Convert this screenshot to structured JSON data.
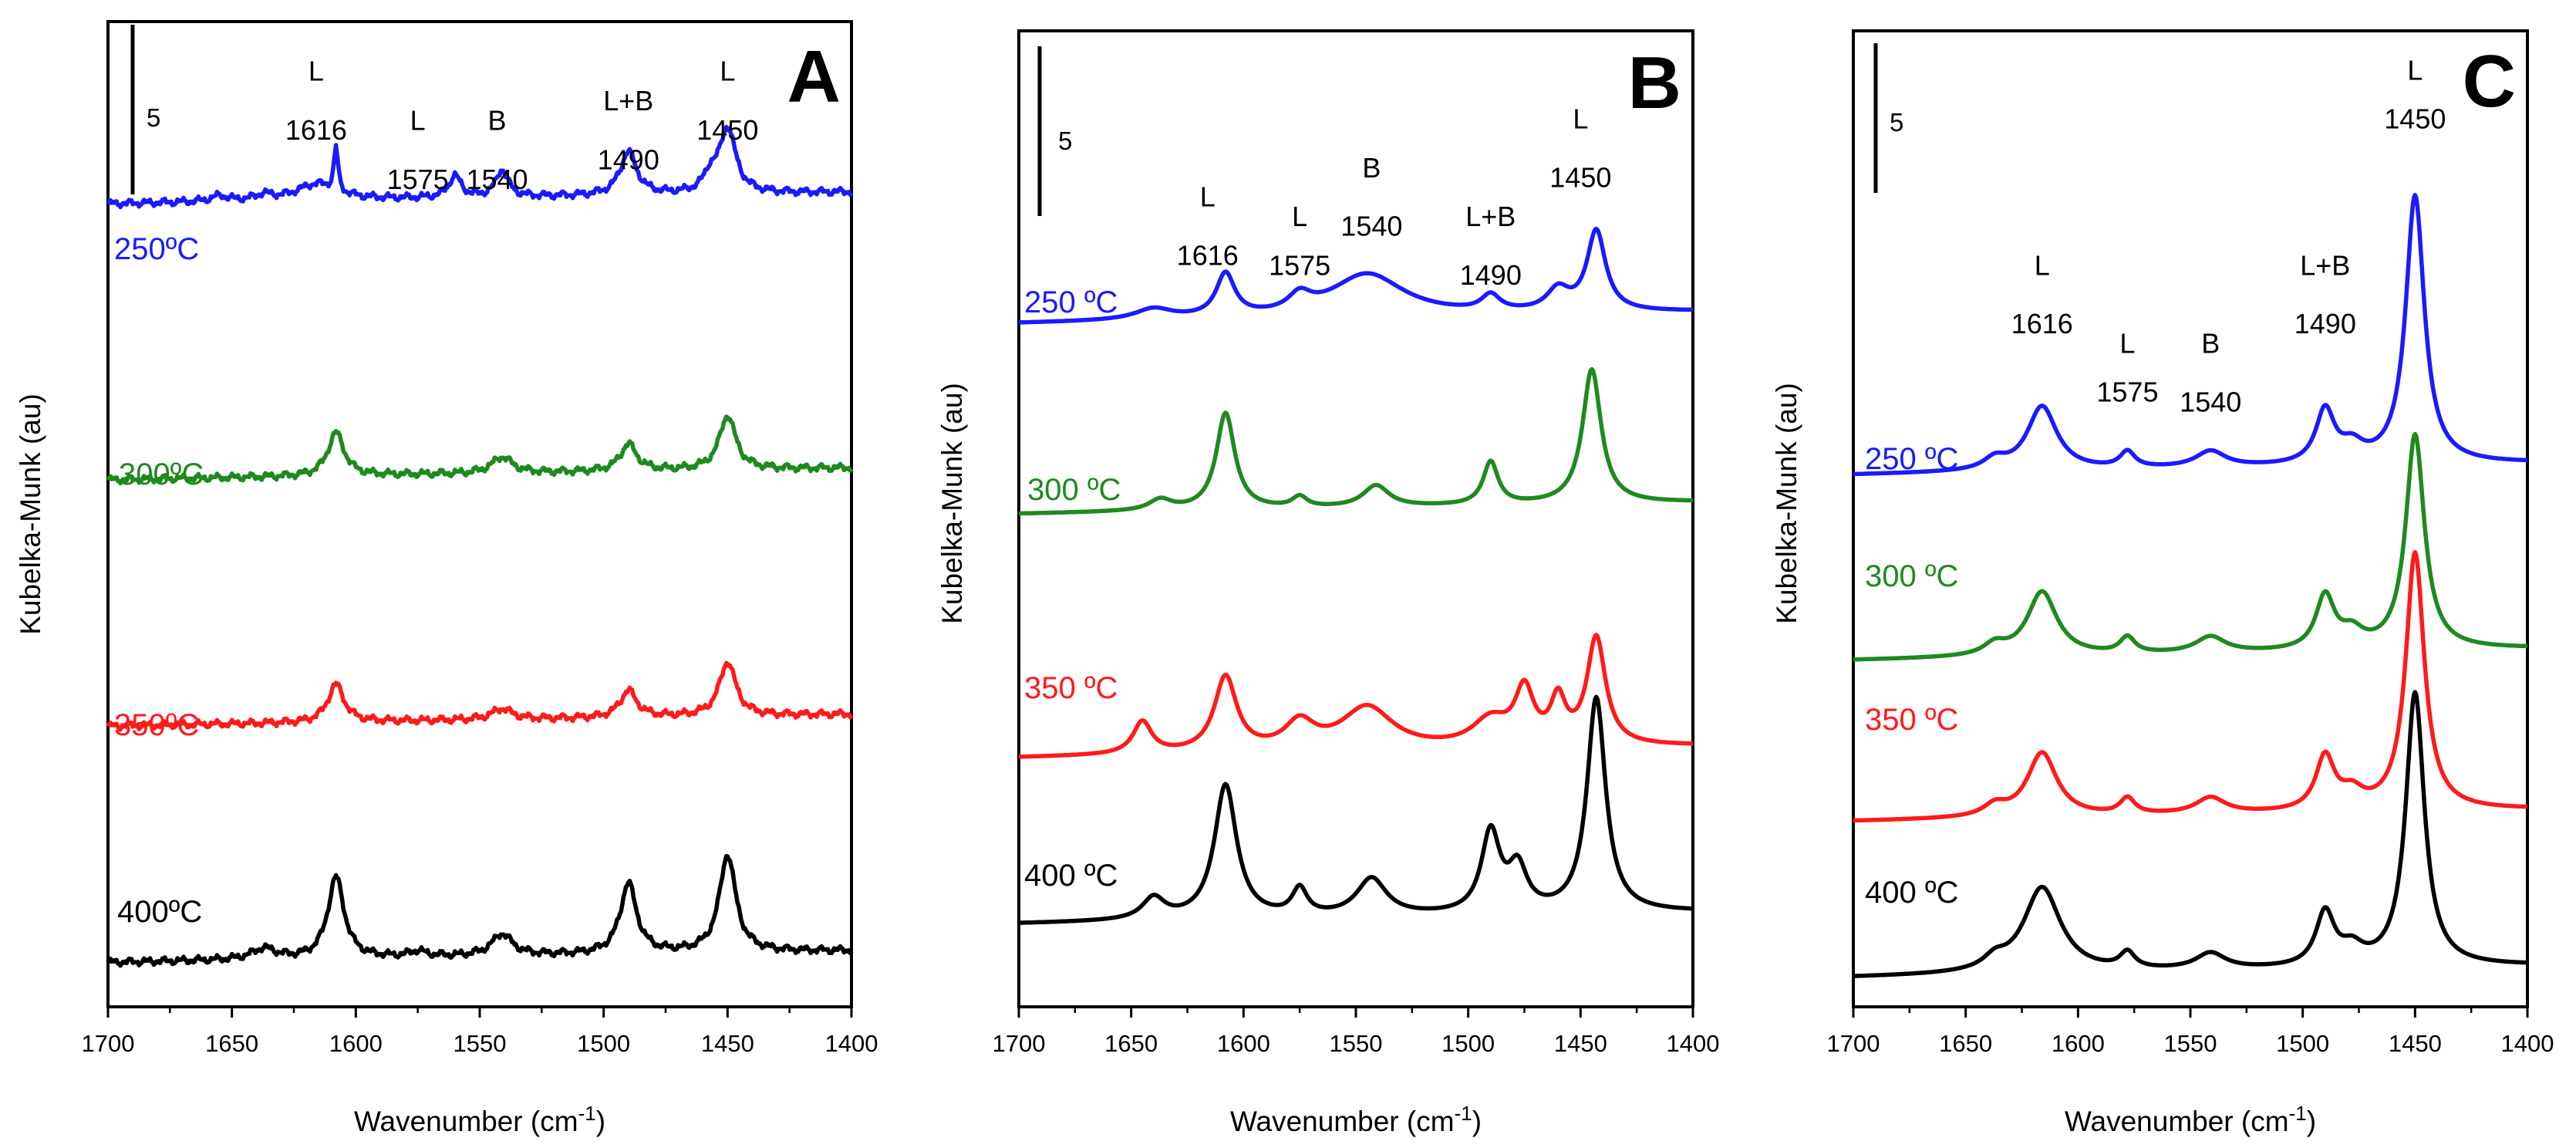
{
  "figure": {
    "ylabel": "Kubelka-Munk (au)",
    "xlabel": "Wavenumber (cm",
    "xlabel_sup": "-1",
    "xlabel_end": ")"
  },
  "colors": {
    "250": "#1a1aff",
    "300": "#1e8a1e",
    "350": "#ff1a1a",
    "400": "#000000",
    "frame": "#000000"
  },
  "chart_data": [
    {
      "type": "line",
      "panel": "A",
      "title": "A",
      "xlabel": "Wavenumber (cm-1)",
      "ylabel": "Kubelka-Munk (au)",
      "xlim": [
        1700,
        1400
      ],
      "ylim": [
        0,
        100
      ],
      "x_ticks": [
        "1700",
        "1650",
        "1600",
        "1550",
        "1500",
        "1450",
        "1400"
      ],
      "scale_bar": "5",
      "series": [
        {
          "name": "250ºC",
          "color_key": "250",
          "baseline": 81.5,
          "amp": 0.55,
          "noise": true,
          "peaks": [
            [
              1616,
              3,
              10
            ],
            [
              1608,
              8,
              1
            ],
            [
              1560,
              4,
              3
            ],
            [
              1541,
              5,
              3
            ],
            [
              1490,
              8,
              4
            ],
            [
              1457,
              3,
              3
            ],
            [
              1450,
              12,
              4
            ],
            [
              1655,
              1,
              4
            ],
            [
              1637,
              1,
              4
            ]
          ]
        },
        {
          "name": "300ºC",
          "color_key": "300",
          "baseline": 53.5,
          "amp": 0.55,
          "noise": true,
          "peaks": [
            [
              1608,
              8,
              4
            ],
            [
              1541,
              3,
              5
            ],
            [
              1490,
              5,
              4
            ],
            [
              1450,
              10,
              4
            ]
          ]
        },
        {
          "name": "350ºC",
          "color_key": "350",
          "baseline": 28.5,
          "amp": 0.55,
          "noise": true,
          "peaks": [
            [
              1608,
              7,
              4
            ],
            [
              1541,
              2,
              5
            ],
            [
              1490,
              5,
              4
            ],
            [
              1450,
              10,
              4
            ]
          ]
        },
        {
          "name": "400ºC",
          "color_key": "400",
          "baseline": 4.5,
          "amp": 0.55,
          "noise": true,
          "peaks": [
            [
              1608,
              15,
              4
            ],
            [
              1575,
              1,
              4
            ],
            [
              1541,
              4,
              5
            ],
            [
              1637,
              2,
              6
            ],
            [
              1490,
              13,
              4
            ],
            [
              1450,
              18,
              4
            ]
          ]
        }
      ],
      "annotations": [
        {
          "text": "L",
          "x": 1616,
          "y": 94
        },
        {
          "text": "1616",
          "x": 1616,
          "y": 88
        },
        {
          "text": "L",
          "x": 1575,
          "y": 89
        },
        {
          "text": "1575",
          "x": 1575,
          "y": 83
        },
        {
          "text": "B",
          "x": 1543,
          "y": 89
        },
        {
          "text": "1540",
          "x": 1543,
          "y": 83
        },
        {
          "text": "L+B",
          "x": 1490,
          "y": 91
        },
        {
          "text": "1490",
          "x": 1490,
          "y": 85
        },
        {
          "text": "L",
          "x": 1450,
          "y": 94
        },
        {
          "text": "1450",
          "x": 1450,
          "y": 88
        }
      ]
    },
    {
      "type": "line",
      "panel": "B",
      "title": "B",
      "xlabel": "Wavenumber (cm-1)",
      "ylabel": "Kubelka-Munk (au)",
      "xlim": [
        1700,
        1400
      ],
      "ylim": [
        0,
        100
      ],
      "x_ticks": [
        "1700",
        "1650",
        "1600",
        "1550",
        "1500",
        "1450",
        "1400"
      ],
      "scale_bar": "5",
      "series": [
        {
          "name": "250 ºC",
          "color_key": "250",
          "baseline": 70,
          "amp": 0.55,
          "noise": false,
          "peaks": [
            [
              1640,
              2,
              10
            ],
            [
              1608,
              8,
              5
            ],
            [
              1575,
              3,
              6
            ],
            [
              1545,
              8,
              20
            ],
            [
              1490,
              3,
              5
            ],
            [
              1460,
              4,
              6
            ],
            [
              1443,
              15,
              5
            ]
          ]
        },
        {
          "name": "300 ºC",
          "color_key": "300",
          "baseline": 50.5,
          "amp": 0.55,
          "noise": false,
          "peaks": [
            [
              1637,
              2,
              6
            ],
            [
              1608,
              18,
              5
            ],
            [
              1575,
              2,
              4
            ],
            [
              1541,
              4,
              7
            ],
            [
              1490,
              8,
              4
            ],
            [
              1445,
              25,
              5
            ]
          ]
        },
        {
          "name": "350 ºC",
          "color_key": "350",
          "baseline": 25.5,
          "amp": 0.55,
          "noise": false,
          "peaks": [
            [
              1645,
              6,
              5
            ],
            [
              1608,
              14,
              6
            ],
            [
              1575,
              5,
              8
            ],
            [
              1545,
              8,
              14
            ],
            [
              1490,
              5,
              10
            ],
            [
              1475,
              10,
              5
            ],
            [
              1460,
              8,
              4
            ],
            [
              1443,
              20,
              5
            ]
          ]
        },
        {
          "name": "400 ºC",
          "color_key": "400",
          "baseline": 8.5,
          "amp": 0.55,
          "noise": false,
          "peaks": [
            [
              1640,
              4,
              6
            ],
            [
              1608,
              25,
              6
            ],
            [
              1575,
              5,
              4
            ],
            [
              1543,
              7,
              8
            ],
            [
              1490,
              15,
              5
            ],
            [
              1478,
              8,
              5
            ],
            [
              1443,
              40,
              5
            ]
          ]
        }
      ],
      "annotations": [
        {
          "text": "L",
          "x": 1616,
          "y": 82
        },
        {
          "text": "1616",
          "x": 1616,
          "y": 76
        },
        {
          "text": "L",
          "x": 1575,
          "y": 80
        },
        {
          "text": "1575",
          "x": 1575,
          "y": 75
        },
        {
          "text": "B",
          "x": 1543,
          "y": 85
        },
        {
          "text": "1540",
          "x": 1543,
          "y": 79
        },
        {
          "text": "L+B",
          "x": 1490,
          "y": 80
        },
        {
          "text": "1490",
          "x": 1490,
          "y": 74
        },
        {
          "text": "L",
          "x": 1450,
          "y": 90
        },
        {
          "text": "1450",
          "x": 1450,
          "y": 84
        }
      ]
    },
    {
      "type": "line",
      "panel": "C",
      "title": "C",
      "xlabel": "Wavenumber (cm-1)",
      "ylabel": "Kubelka-Munk (au)",
      "xlim": [
        1700,
        1400
      ],
      "ylim": [
        0,
        100
      ],
      "x_ticks": [
        "1700",
        "1650",
        "1600",
        "1550",
        "1500",
        "1450",
        "1400"
      ],
      "scale_bar": "5",
      "series": [
        {
          "name": "250 ºC",
          "color_key": "250",
          "baseline": 54.5,
          "amp": 0.55,
          "noise": false,
          "peaks": [
            [
              1637,
              2,
              6
            ],
            [
              1616,
              12,
              8
            ],
            [
              1578,
              3,
              4
            ],
            [
              1541,
              3,
              8
            ],
            [
              1490,
              10,
              5
            ],
            [
              1478,
              3,
              6
            ],
            [
              1450,
              50,
              5
            ]
          ]
        },
        {
          "name": "300 ºC",
          "color_key": "300",
          "baseline": 35.5,
          "amp": 0.55,
          "noise": false,
          "peaks": [
            [
              1637,
              2,
              6
            ],
            [
              1616,
              12,
              8
            ],
            [
              1578,
              3,
              4
            ],
            [
              1541,
              3,
              8
            ],
            [
              1490,
              10,
              5
            ],
            [
              1478,
              3,
              6
            ],
            [
              1450,
              40,
              5
            ]
          ]
        },
        {
          "name": "350 ºC",
          "color_key": "350",
          "baseline": 19,
          "amp": 0.55,
          "noise": false,
          "peaks": [
            [
              1637,
              2,
              6
            ],
            [
              1616,
              12,
              8
            ],
            [
              1578,
              3,
              4
            ],
            [
              1541,
              3,
              8
            ],
            [
              1490,
              10,
              5
            ],
            [
              1478,
              3,
              6
            ],
            [
              1450,
              48,
              5
            ]
          ]
        },
        {
          "name": "400 ºC",
          "color_key": "400",
          "baseline": 3,
          "amp": 0.55,
          "noise": false,
          "peaks": [
            [
              1637,
              2,
              6
            ],
            [
              1616,
              16,
              10
            ],
            [
              1578,
              3,
              4
            ],
            [
              1541,
              3,
              8
            ],
            [
              1490,
              10,
              5
            ],
            [
              1478,
              3,
              6
            ],
            [
              1450,
              51,
              5
            ]
          ]
        }
      ],
      "annotations": [
        {
          "text": "L",
          "x": 1450,
          "y": 95
        },
        {
          "text": "1450",
          "x": 1450,
          "y": 90
        },
        {
          "text": "L",
          "x": 1616,
          "y": 75
        },
        {
          "text": "1616",
          "x": 1616,
          "y": 69
        },
        {
          "text": "L",
          "x": 1578,
          "y": 67
        },
        {
          "text": "1575",
          "x": 1578,
          "y": 62
        },
        {
          "text": "B",
          "x": 1541,
          "y": 67
        },
        {
          "text": "1540",
          "x": 1541,
          "y": 61
        },
        {
          "text": "L+B",
          "x": 1490,
          "y": 75
        },
        {
          "text": "1490",
          "x": 1490,
          "y": 69
        }
      ]
    }
  ]
}
